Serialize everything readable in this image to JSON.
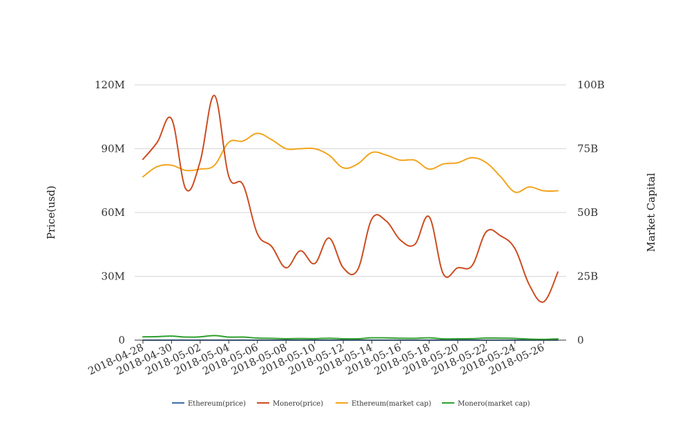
{
  "chart_data": {
    "type": "line",
    "title": "",
    "ylabel_left": "Price(usd)",
    "ylabel_right": "Market Capital",
    "x": [
      "2018-04-28",
      "2018-04-29",
      "2018-04-30",
      "2018-05-01",
      "2018-05-02",
      "2018-05-03",
      "2018-05-04",
      "2018-05-05",
      "2018-05-06",
      "2018-05-07",
      "2018-05-08",
      "2018-05-09",
      "2018-05-10",
      "2018-05-11",
      "2018-05-12",
      "2018-05-13",
      "2018-05-14",
      "2018-05-15",
      "2018-05-16",
      "2018-05-17",
      "2018-05-18",
      "2018-05-19",
      "2018-05-20",
      "2018-05-21",
      "2018-05-22",
      "2018-05-23",
      "2018-05-24",
      "2018-05-25",
      "2018-05-26",
      "2018-05-27"
    ],
    "x_tick_labels": [
      "2018-04-28",
      "2018-04-30",
      "2018-05-02",
      "2018-05-04",
      "2018-05-06",
      "2018-05-08",
      "2018-05-10",
      "2018-05-12",
      "2018-05-14",
      "2018-05-16",
      "2018-05-18",
      "2018-05-20",
      "2018-05-22",
      "2018-05-24",
      "2018-05-26"
    ],
    "y_left": {
      "ticks": [
        0,
        30000000,
        60000000,
        90000000,
        120000000
      ],
      "tick_labels": [
        "0",
        "30M",
        "60M",
        "90M",
        "120M"
      ],
      "ylim": [
        0,
        120000000
      ]
    },
    "y_right": {
      "ticks": [
        0,
        25000000000,
        50000000000,
        75000000000,
        100000000000
      ],
      "tick_labels": [
        "0",
        "25B",
        "50B",
        "75B",
        "100B"
      ],
      "ylim": [
        0,
        100000000000
      ]
    },
    "grid": true,
    "legend_position": "bottom",
    "series": [
      {
        "name": "Ethereum(price)",
        "axis": "left",
        "color": "#3a6ea5",
        "values": [
          700,
          690,
          670,
          660,
          680,
          780,
          790,
          760,
          750,
          720,
          740,
          720,
          680,
          640,
          690,
          700,
          730,
          720,
          700,
          710,
          700,
          690,
          680,
          700,
          640,
          600,
          590,
          610,
          600,
          580
        ]
      },
      {
        "name": "Monero(price)",
        "axis": "left",
        "color": "#cc4b1f",
        "values": [
          85000000,
          93000000,
          104000000,
          71000000,
          84000000,
          115000000,
          77000000,
          73000000,
          50000000,
          44000000,
          34000000,
          42000000,
          36000000,
          48000000,
          34000000,
          33000000,
          57000000,
          56000000,
          47000000,
          45000000,
          58000000,
          31000000,
          34000000,
          35000000,
          51000000,
          49000000,
          43000000,
          26000000,
          18000000,
          32000000
        ]
      },
      {
        "name": "Ethereum(market cap)",
        "axis": "right",
        "color": "#f2a41c",
        "values": [
          64000000000,
          68000000000,
          68500000000,
          66500000000,
          67000000000,
          68500000000,
          77500000000,
          78000000000,
          81000000000,
          78500000000,
          75000000000,
          75000000000,
          75000000000,
          72500000000,
          67500000000,
          69000000000,
          73500000000,
          72500000000,
          70500000000,
          70500000000,
          67000000000,
          69000000000,
          69500000000,
          71500000000,
          69500000000,
          64000000000,
          58000000000,
          60000000000,
          58500000000,
          58500000000
        ]
      },
      {
        "name": "Monero(market cap)",
        "axis": "right",
        "color": "#2ca02c",
        "values": [
          1300000000,
          1400000000,
          1600000000,
          1200000000,
          1300000000,
          1800000000,
          1200000000,
          1200000000,
          800000000,
          700000000,
          550000000,
          650000000,
          580000000,
          760000000,
          550000000,
          530000000,
          900000000,
          880000000,
          750000000,
          720000000,
          920000000,
          500000000,
          550000000,
          560000000,
          800000000,
          780000000,
          690000000,
          420000000,
          290000000,
          510000000
        ]
      }
    ]
  }
}
